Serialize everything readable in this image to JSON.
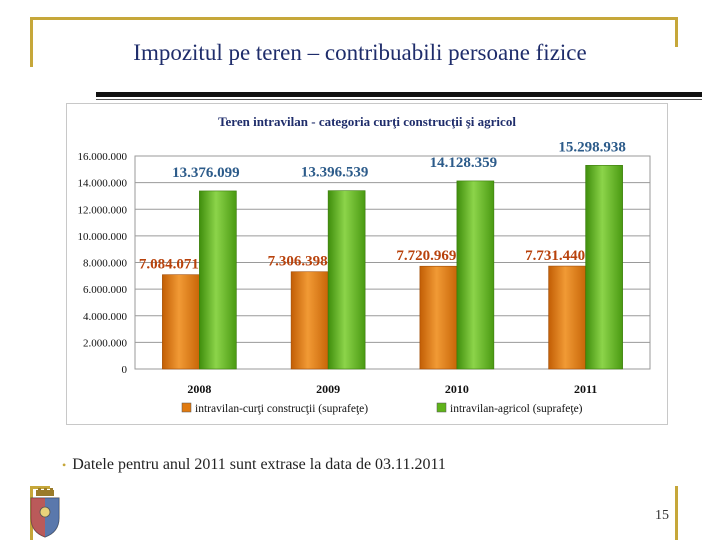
{
  "slide": {
    "title": "Impozitul pe teren – contribuabili persoane fizice",
    "note": "Datele pentru anul 2011 sunt extrase la data de 03.11.2011",
    "page_number": "15"
  },
  "colors": {
    "accent": "#c6a73a",
    "title_text": "#1f2d6b",
    "series_orange": "#e07a10",
    "series_green": "#5fb31a",
    "label_orange": "#b8420c",
    "label_green": "#2c5b8a"
  },
  "chart_data": {
    "type": "bar",
    "title": "Teren intravilan - categoria curţi construcţii şi agricol",
    "categories": [
      "2008",
      "2009",
      "2010",
      "2011"
    ],
    "series": [
      {
        "name": "intravilan-curţi construcţii (suprafeţe)",
        "values": [
          7084071,
          7306398,
          7720969,
          7731440
        ],
        "labels": [
          "7.084.071",
          "7.306.398",
          "7.720.969",
          "7.731.440"
        ]
      },
      {
        "name": "intravilan-agricol (suprafeţe)",
        "values": [
          13376099,
          13396539,
          14128359,
          15298938
        ],
        "labels": [
          "13.376.099",
          "13.396.539",
          "14.128.359",
          "15.298.938"
        ]
      }
    ],
    "yticks": [
      0,
      2000000,
      4000000,
      6000000,
      8000000,
      10000000,
      12000000,
      14000000,
      16000000
    ],
    "ytick_labels": [
      "0",
      "2.000.000",
      "4.000.000",
      "6.000.000",
      "8.000.000",
      "10.000.000",
      "12.000.000",
      "14.000.000",
      "16.000.000"
    ],
    "ylim": [
      0,
      16000000
    ],
    "grid": true,
    "legend": "bottom",
    "xlabel": "",
    "ylabel": ""
  }
}
